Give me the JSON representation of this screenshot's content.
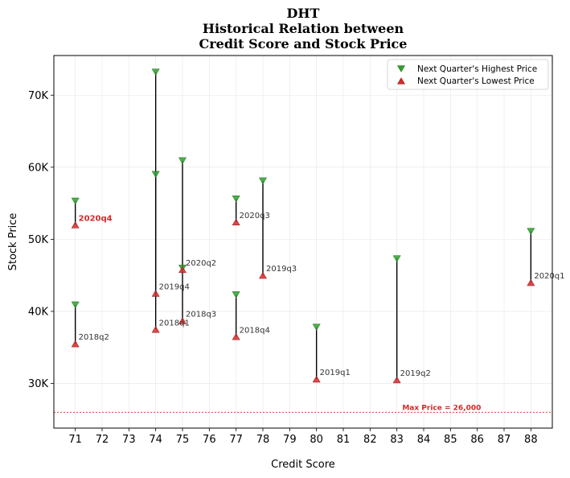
{
  "chart_data": {
    "type": "scatter",
    "title_lines": [
      "DHT",
      "Historical Relation between",
      "Credit Score and Stock Price"
    ],
    "xlabel": "Credit Score",
    "ylabel": "Stock Price",
    "xlim": [
      70.2,
      88.8
    ],
    "ylim": [
      23800,
      75500
    ],
    "x_ticks": [
      71,
      72,
      73,
      74,
      75,
      76,
      77,
      78,
      79,
      80,
      81,
      82,
      83,
      84,
      85,
      86,
      87,
      88
    ],
    "y_ticks": [
      {
        "value": 30000,
        "label": "30K"
      },
      {
        "value": 40000,
        "label": "40K"
      },
      {
        "value": 50000,
        "label": "50K"
      },
      {
        "value": 60000,
        "label": "60K"
      },
      {
        "value": 70000,
        "label": "70K"
      }
    ],
    "grid": true,
    "legend_position": "top-right",
    "series": [
      {
        "name": "Next Quarter's Highest Price",
        "marker": "triangle-down",
        "color": "#2ca02c"
      },
      {
        "name": "Next Quarter's Lowest Price",
        "marker": "triangle-up",
        "color": "#d62728"
      }
    ],
    "points": [
      {
        "label": "2020q4",
        "x": 71,
        "high": 55300,
        "low": 52000,
        "highlight": true
      },
      {
        "label": "2018q2",
        "x": 71,
        "high": 40900,
        "low": 35500,
        "highlight": false
      },
      {
        "label": "2019q4",
        "x": 74,
        "high": 59000,
        "low": 42500,
        "highlight": false
      },
      {
        "label": "2018q1",
        "x": 74,
        "high": 73200,
        "low": 37500,
        "highlight": false
      },
      {
        "label": "2020q2",
        "x": 75,
        "high": 46000,
        "low": 45800,
        "highlight": false
      },
      {
        "label": "2018q3",
        "x": 75,
        "high": 60900,
        "low": 38700,
        "highlight": false
      },
      {
        "label": "2020q3",
        "x": 77,
        "high": 55600,
        "low": 52400,
        "highlight": false
      },
      {
        "label": "2018q4",
        "x": 77,
        "high": 42300,
        "low": 36500,
        "highlight": false
      },
      {
        "label": "2019q3",
        "x": 78,
        "high": 58100,
        "low": 45000,
        "highlight": false
      },
      {
        "label": "2019q1",
        "x": 80,
        "high": 37800,
        "low": 30600,
        "highlight": false
      },
      {
        "label": "2019q2",
        "x": 83,
        "high": 47300,
        "low": 30500,
        "highlight": false
      },
      {
        "label": "2020q1",
        "x": 88,
        "high": 51100,
        "low": 44000,
        "highlight": false
      }
    ],
    "reference_line": {
      "value": 26000,
      "label": "Max Price = 26,000",
      "color": "#d62728"
    }
  }
}
